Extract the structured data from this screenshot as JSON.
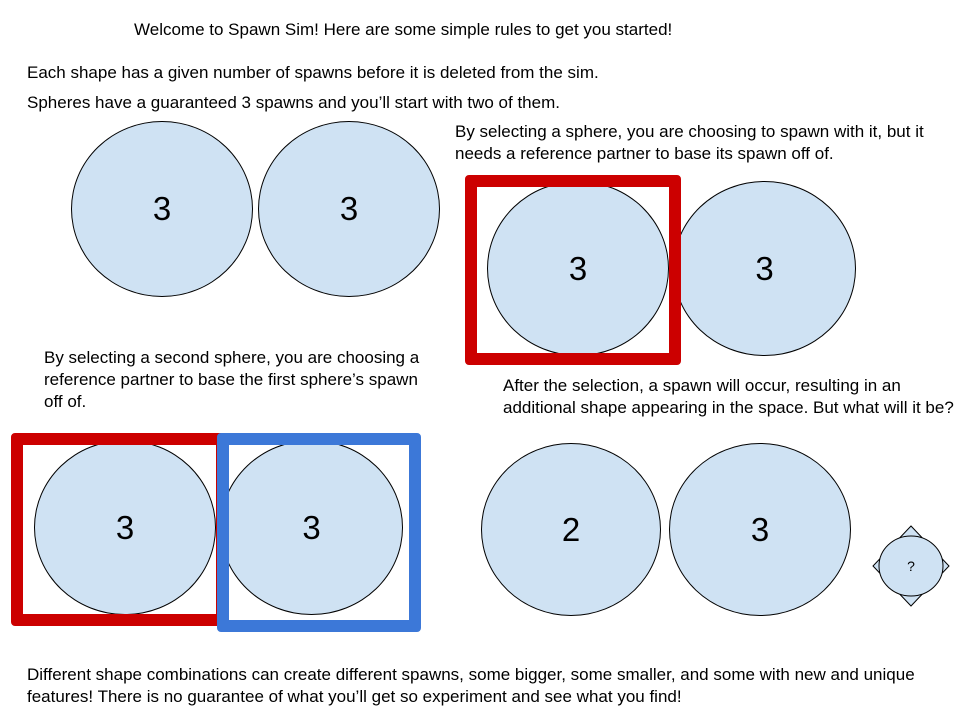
{
  "title": "Welcome to Spawn Sim! Here are some simple rules to get you started!",
  "rule_spawns": "Each shape has a given number of spawns before it is deleted from the sim.",
  "rule_spheres": "Spheres have a guaranteed 3 spawns and you’ll start with two of them.",
  "panel_start": {
    "sphere_a": "3",
    "sphere_b": "3"
  },
  "panel_select": {
    "caption": "By selecting a sphere, you are choosing to spawn with it, but it needs a reference partner to base its spawn off of.",
    "sphere_a": "3",
    "sphere_b": "3"
  },
  "panel_partner": {
    "caption": "By selecting a second sphere, you are choosing a reference partner to base the first sphere’s spawn off of.",
    "sphere_a": "3",
    "sphere_b": "3"
  },
  "panel_result": {
    "caption": "After the selection, a spawn will occur, resulting in an additional shape appearing in the space. But what will it be?",
    "sphere_a": "2",
    "sphere_b": "3",
    "mystery": "?"
  },
  "footer": "Different shape combinations can create different spawns, some bigger, some smaller, and some with new and unique features! There is no guarantee of what you’ll get so experiment and see what you find!",
  "colors": {
    "sphere_fill": "#cfe2f3",
    "first_selection": "#cc0000",
    "partner_selection": "#3c78d8"
  }
}
